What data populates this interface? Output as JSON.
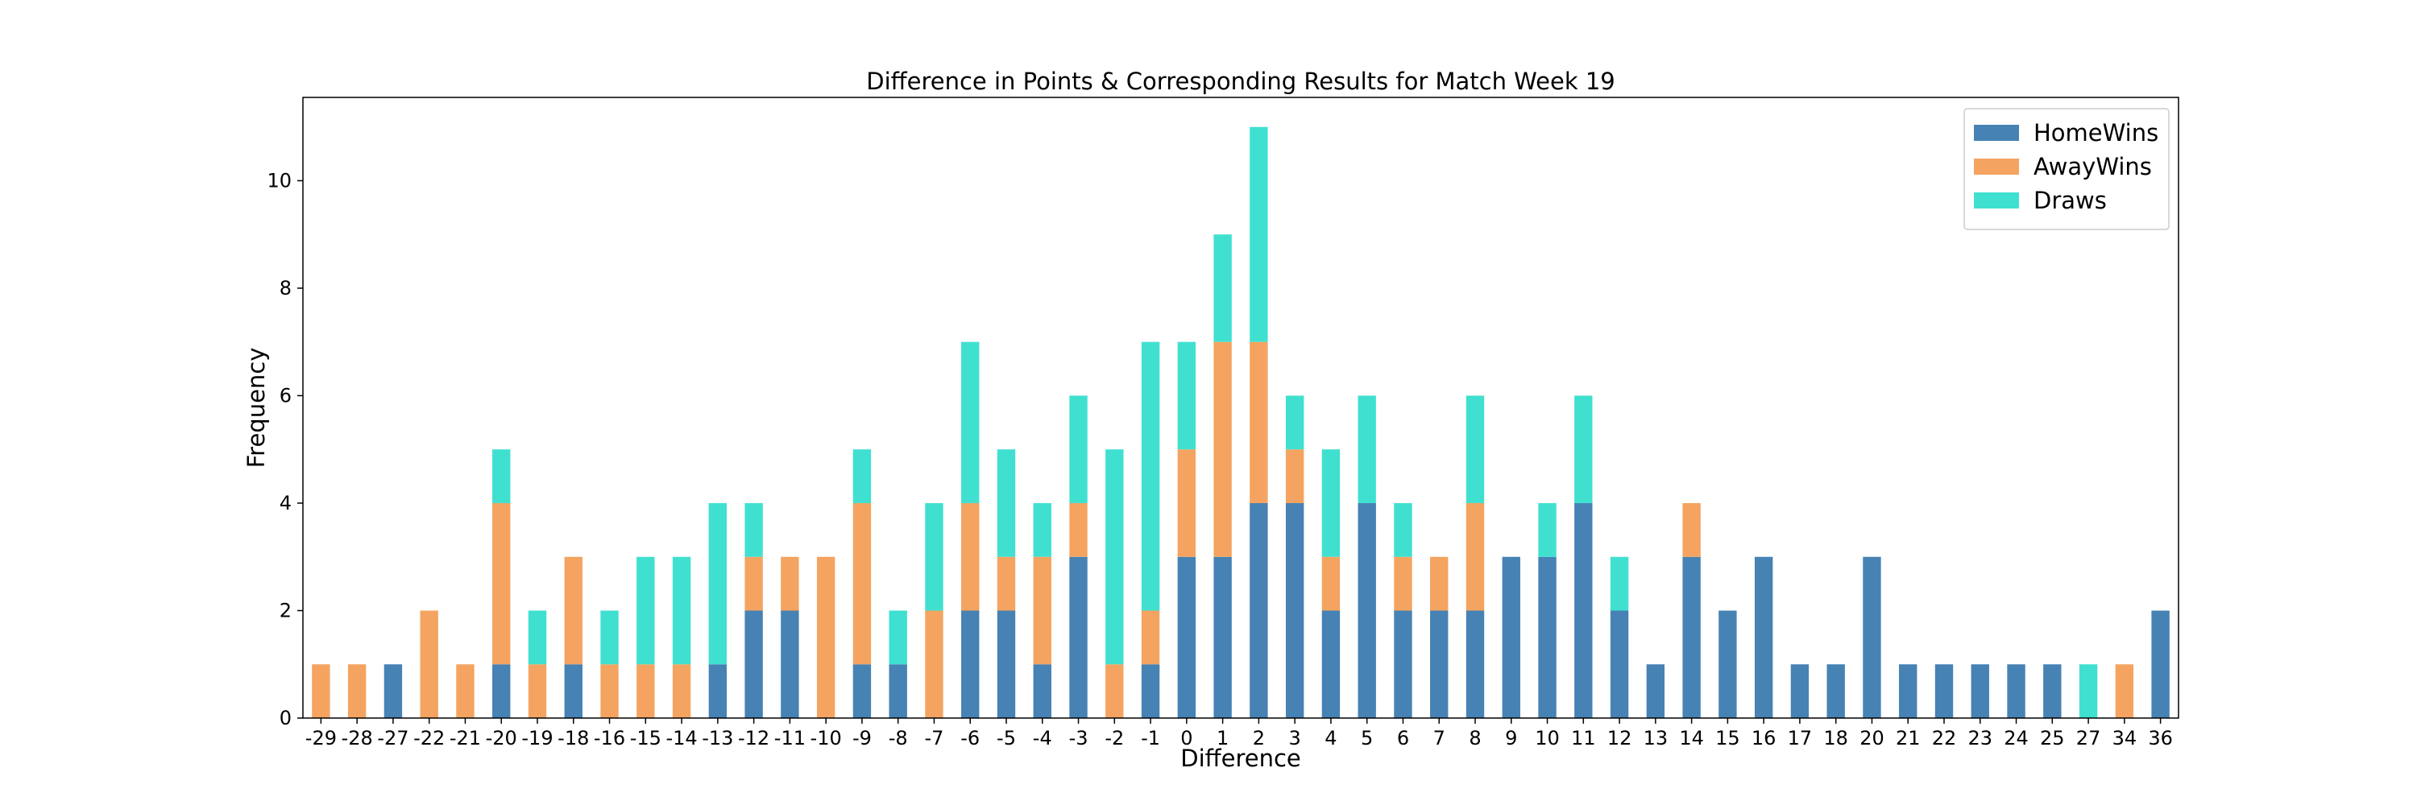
{
  "chart_data": {
    "type": "bar",
    "stacked": true,
    "title": "Difference in Points & Corresponding Results for Match Week 19",
    "xlabel": "Difference",
    "ylabel": "Frequency",
    "ylim": [
      0,
      11.55
    ],
    "yticks": [
      0,
      2,
      4,
      6,
      8,
      10
    ],
    "grid": false,
    "legend_position": "top-right",
    "categories": [
      "-29",
      "-28",
      "-27",
      "-22",
      "-21",
      "-20",
      "-19",
      "-18",
      "-16",
      "-15",
      "-14",
      "-13",
      "-12",
      "-11",
      "-10",
      "-9",
      "-8",
      "-7",
      "-6",
      "-5",
      "-4",
      "-3",
      "-2",
      "-1",
      "0",
      "1",
      "2",
      "3",
      "4",
      "5",
      "6",
      "7",
      "8",
      "9",
      "10",
      "11",
      "12",
      "13",
      "14",
      "15",
      "16",
      "17",
      "18",
      "20",
      "21",
      "22",
      "23",
      "24",
      "25",
      "27",
      "34",
      "36"
    ],
    "series": [
      {
        "name": "HomeWins",
        "color": "#4682b4",
        "values": [
          0,
          0,
          1,
          0,
          0,
          1,
          0,
          1,
          0,
          0,
          0,
          1,
          2,
          2,
          0,
          1,
          1,
          0,
          2,
          2,
          1,
          3,
          0,
          1,
          3,
          3,
          4,
          4,
          2,
          4,
          2,
          2,
          2,
          3,
          3,
          4,
          2,
          1,
          3,
          2,
          3,
          1,
          1,
          3,
          1,
          1,
          1,
          1,
          1,
          0,
          0,
          2
        ]
      },
      {
        "name": "AwayWins",
        "color": "#f4a460",
        "values": [
          1,
          1,
          0,
          2,
          1,
          3,
          1,
          2,
          1,
          1,
          1,
          0,
          1,
          1,
          3,
          3,
          0,
          2,
          2,
          1,
          2,
          1,
          1,
          1,
          2,
          4,
          3,
          1,
          1,
          0,
          1,
          1,
          2,
          0,
          0,
          0,
          0,
          0,
          1,
          0,
          0,
          0,
          0,
          0,
          0,
          0,
          0,
          0,
          0,
          0,
          1,
          0
        ]
      },
      {
        "name": "Draws",
        "color": "#40e0d0",
        "values": [
          0,
          0,
          0,
          0,
          0,
          1,
          1,
          0,
          1,
          2,
          2,
          3,
          1,
          0,
          0,
          1,
          1,
          2,
          3,
          2,
          1,
          2,
          4,
          5,
          2,
          2,
          4,
          1,
          2,
          2,
          1,
          0,
          2,
          0,
          1,
          2,
          1,
          0,
          0,
          0,
          0,
          0,
          0,
          0,
          0,
          0,
          0,
          0,
          0,
          1,
          0,
          0
        ]
      }
    ]
  }
}
